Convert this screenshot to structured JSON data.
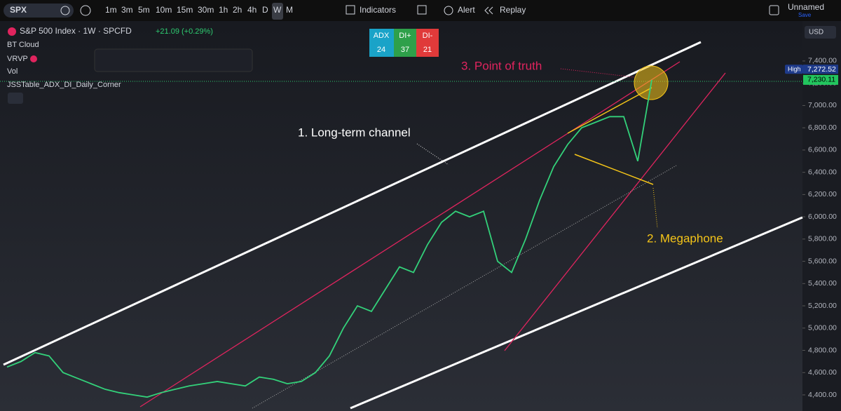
{
  "toolbar": {
    "symbol": "SPX",
    "intervals": [
      "1m",
      "3m",
      "5m",
      "10m",
      "15m",
      "30m",
      "1h",
      "2h",
      "4h",
      "D",
      "W",
      "M"
    ],
    "indicators": "Indicators",
    "alert": "Alert",
    "replay": "Replay",
    "layout_name": "Unnamed",
    "save": "Save"
  },
  "legend": {
    "title": "S&P 500 Index · 1W · SPCFD",
    "change": "+21.09 (+0.29%)",
    "indicators": [
      "BT Cloud",
      "VRVP",
      "Vol",
      "JSSTable_ADX_DI_Daily_Corner"
    ]
  },
  "adx_table": {
    "headers": [
      "ADX",
      "DI+",
      "DI-"
    ],
    "values": [
      "24",
      "37",
      "21"
    ]
  },
  "annotations": [
    "1. Long-term channel",
    "2. Megaphone",
    "3. Point of truth"
  ],
  "chart_data": {
    "type": "line",
    "currency": "USD",
    "color": "#33d17a",
    "values": [
      4650,
      4700,
      4780,
      4750,
      4600,
      4550,
      4500,
      4450,
      4420,
      4400,
      4380,
      4420,
      4450,
      4480,
      4500,
      4520,
      4500,
      4480,
      4560,
      4540,
      4500,
      4520,
      4600,
      4750,
      5000,
      5200,
      5150,
      5350,
      5550,
      5500,
      5750,
      5950,
      6050,
      6000,
      6050,
      5600,
      5500,
      5800,
      6150,
      6450,
      6650,
      6800,
      6850,
      6900,
      6900,
      6500,
      7230
    ],
    "ylim": [
      4255,
      7759
    ],
    "yticks": [
      {
        "value": 4400,
        "label": "4,400.00"
      },
      {
        "value": 4600,
        "label": "4,600.00"
      },
      {
        "value": 4800,
        "label": "4,800.00"
      },
      {
        "value": 5000,
        "label": "5,000.00"
      },
      {
        "value": 5200,
        "label": "5,200.00"
      },
      {
        "value": 5400,
        "label": "5,400.00"
      },
      {
        "value": 5600,
        "label": "5,600.00"
      },
      {
        "value": 5800,
        "label": "5,800.00"
      },
      {
        "value": 6000,
        "label": "6,000.00"
      },
      {
        "value": 6200,
        "label": "6,200.00"
      },
      {
        "value": 6400,
        "label": "6,400.00"
      },
      {
        "value": 6600,
        "label": "6,600.00"
      },
      {
        "value": 6800,
        "label": "6,800.00"
      },
      {
        "value": 7000,
        "label": "7,000.00"
      },
      {
        "value": 7200,
        "label": "7,200.00"
      },
      {
        "value": 7400,
        "label": "7,400.00"
      }
    ],
    "high_label": "High",
    "high": {
      "value": 7272.52,
      "label": "7,272.52"
    },
    "last": {
      "value": 7230.11,
      "label": "7,230.11"
    }
  }
}
